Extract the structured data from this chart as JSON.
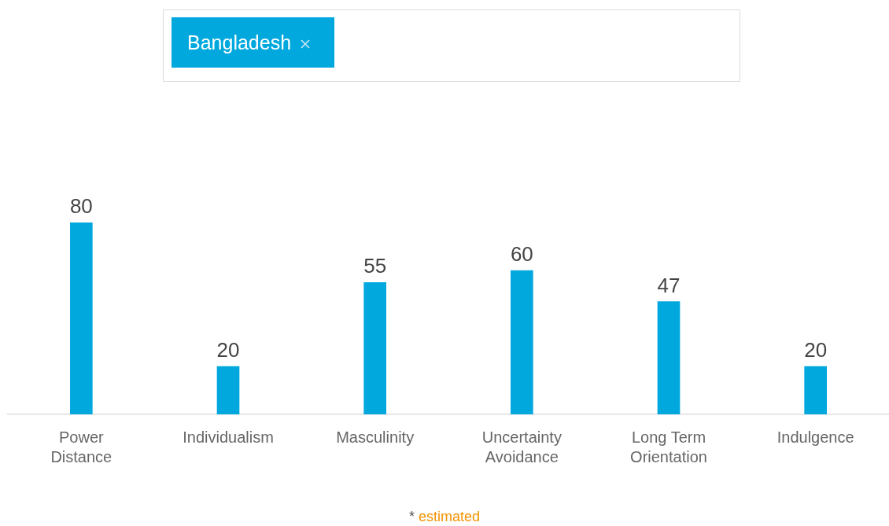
{
  "chart_data": {
    "type": "bar",
    "categories": [
      "Power Distance",
      "Individualism",
      "Masculinity",
      "Uncertainty Avoidance",
      "Long Term Orientation",
      "Indulgence"
    ],
    "series": [
      {
        "name": "Bangladesh",
        "color": "#00a8de",
        "values": [
          80,
          20,
          55,
          60,
          47,
          20
        ]
      }
    ],
    "tick_labels": "x",
    "grid": false,
    "legend": "top",
    "data_labels": true,
    "annotations": [
      "* estimated"
    ]
  }
}
